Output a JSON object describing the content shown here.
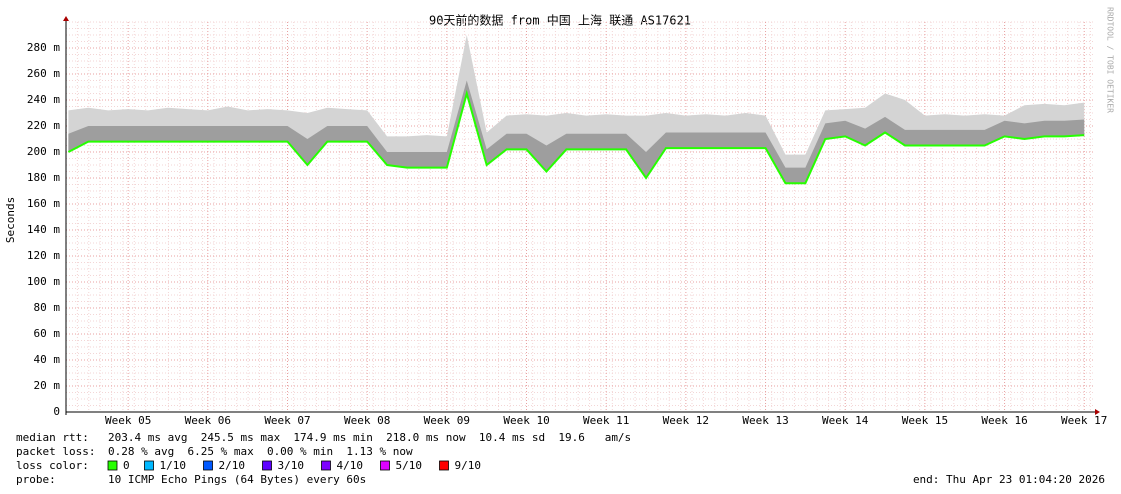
{
  "chart_data": {
    "type": "smoke",
    "title": "90天前的数据 from 中国 上海 联通 AS17621",
    "y_label": "Seconds",
    "watermark": "RRDTOOL / TOBI OETIKER",
    "xlim": [
      4.22,
      17.11
    ],
    "xticks": [
      {
        "value": 5,
        "label": "Week 05"
      },
      {
        "value": 6,
        "label": "Week 06"
      },
      {
        "value": 7,
        "label": "Week 07"
      },
      {
        "value": 8,
        "label": "Week 08"
      },
      {
        "value": 9,
        "label": "Week 09"
      },
      {
        "value": 10,
        "label": "Week 10"
      },
      {
        "value": 11,
        "label": "Week 11"
      },
      {
        "value": 12,
        "label": "Week 12"
      },
      {
        "value": 13,
        "label": "Week 13"
      },
      {
        "value": 14,
        "label": "Week 14"
      },
      {
        "value": 15,
        "label": "Week 15"
      },
      {
        "value": 16,
        "label": "Week 16"
      },
      {
        "value": 17,
        "label": "Week 17"
      }
    ],
    "ylim": [
      0,
      300
    ],
    "yticks": [
      0,
      {
        "value": 20,
        "label": "20 m"
      },
      {
        "value": 40,
        "label": "40 m"
      },
      {
        "value": 60,
        "label": "60 m"
      },
      {
        "value": 80,
        "label": "80 m"
      },
      {
        "value": 100,
        "label": "100 m"
      },
      {
        "value": 120,
        "label": "120 m"
      },
      {
        "value": 140,
        "label": "140 m"
      },
      {
        "value": 160,
        "label": "160 m"
      },
      {
        "value": 180,
        "label": "180 m"
      },
      {
        "value": 200,
        "label": "200 m"
      },
      {
        "value": 220,
        "label": "220 m"
      },
      {
        "value": 240,
        "label": "240 m"
      },
      {
        "value": 260,
        "label": "260 m"
      },
      {
        "value": 280,
        "label": "280 m"
      }
    ],
    "grid": true,
    "x": [
      4.25,
      4.5,
      4.75,
      5,
      5.25,
      5.5,
      5.75,
      6,
      6.25,
      6.5,
      6.75,
      7,
      7.25,
      7.5,
      7.75,
      8,
      8.25,
      8.5,
      8.75,
      9,
      9.25,
      9.5,
      9.75,
      10,
      10.25,
      10.5,
      10.75,
      11,
      11.25,
      11.5,
      11.75,
      12,
      12.25,
      12.5,
      12.75,
      13,
      13.25,
      13.5,
      13.75,
      14,
      14.25,
      14.5,
      14.75,
      15,
      15.25,
      15.5,
      15.75,
      16,
      16.25,
      16.5,
      16.75,
      17
    ],
    "smoke": [
      {
        "color": "#d4d4d4",
        "values": [
          232,
          234,
          232,
          233,
          232,
          234,
          233,
          232,
          235,
          232,
          233,
          232,
          230,
          234,
          233,
          232,
          212,
          212,
          213,
          212,
          290,
          215,
          228,
          229,
          228,
          230,
          228,
          229,
          228,
          228,
          230,
          228,
          229,
          228,
          230,
          228,
          198,
          198,
          232,
          233,
          234,
          245,
          240,
          228,
          229,
          228,
          229,
          228,
          236,
          237,
          236,
          238
        ]
      },
      {
        "color": "#9e9e9e",
        "values": [
          214,
          220,
          220,
          220,
          220,
          220,
          220,
          220,
          220,
          220,
          220,
          220,
          210,
          220,
          220,
          220,
          200,
          200,
          200,
          200,
          255,
          202,
          214,
          214,
          205,
          214,
          214,
          214,
          214,
          200,
          215,
          215,
          215,
          215,
          215,
          215,
          188,
          188,
          222,
          224,
          218,
          227,
          217,
          217,
          217,
          217,
          217,
          224,
          222,
          224,
          224,
          225
        ]
      }
    ],
    "median": {
      "color": "#26ff00",
      "values": [
        200,
        208,
        208,
        208,
        208,
        208,
        208,
        208,
        208,
        208,
        208,
        208,
        190,
        208,
        208,
        208,
        190,
        188,
        188,
        188,
        245,
        190,
        202,
        202,
        185,
        202,
        202,
        202,
        202,
        180,
        203,
        203,
        203,
        203,
        203,
        203,
        176,
        176,
        210,
        212,
        205,
        215,
        205,
        205,
        205,
        205,
        205,
        212,
        210,
        212,
        212,
        213
      ]
    },
    "stats": [
      {
        "label": "median rtt:",
        "text": "203.4 ms avg  245.5 ms max  174.9 ms min  218.0 ms now  10.4 ms sd  19.6   am/s"
      },
      {
        "label": "packet loss:",
        "text": "0.28 % avg  6.25 % max  0.00 % min  1.13 % now"
      }
    ],
    "loss_color": {
      "label": "loss color:",
      "items": [
        {
          "color": "#26ff00",
          "label": "0"
        },
        {
          "color": "#00b8ff",
          "label": "1/10"
        },
        {
          "color": "#0059ff",
          "label": "2/10"
        },
        {
          "color": "#5e00ff",
          "label": "3/10"
        },
        {
          "color": "#7e00ff",
          "label": "4/10"
        },
        {
          "color": "#dd00ff",
          "label": "5/10"
        },
        {
          "color": "#ff0000",
          "label": "9/10"
        }
      ]
    },
    "probe": {
      "label": "probe:",
      "text": "10 ICMP Echo Pings (64 Bytes) every 60s",
      "end": "end: Thu Apr 23 01:04:20 2026"
    }
  }
}
